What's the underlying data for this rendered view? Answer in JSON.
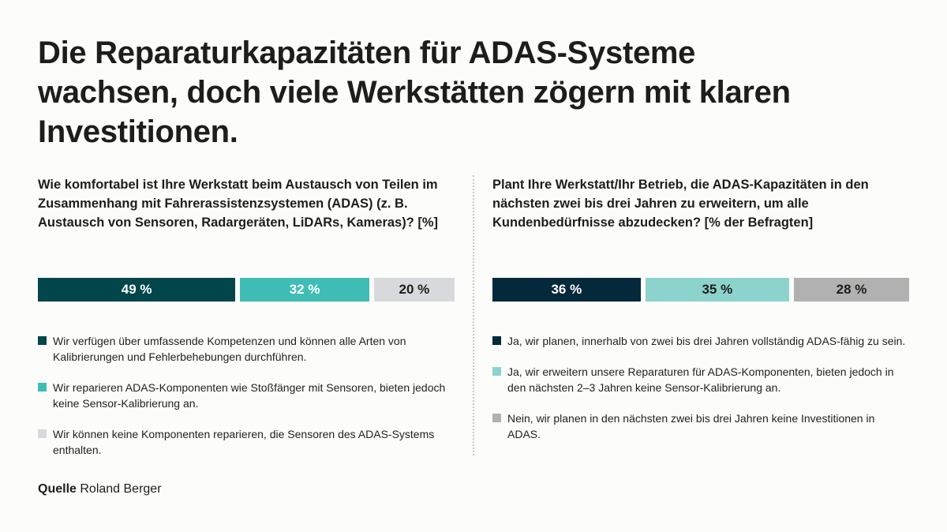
{
  "title": "Die Reparaturkapazitäten für ADAS-Systeme wachsen, doch viele Werkstätten zögern mit klaren Investitionen.",
  "source": {
    "label": "Quelle",
    "value": "Roland Berger"
  },
  "chart_data": [
    {
      "type": "bar",
      "orientation": "horizontal-stacked",
      "title": "Wie komfortabel ist Ihre Werkstatt beim Austausch von Teilen im Zusammenhang mit Fahrerassistenzsystemen (ADAS) (z. B. Austausch von Sensoren, Radargeräten, LiDARs, Kameras)? [%]",
      "values": [
        49,
        32,
        20
      ],
      "labels": [
        "49 %",
        "32 %",
        "20 %"
      ],
      "colors": [
        "#00464b",
        "#3fbdb5",
        "#d8d9dc"
      ],
      "label_colors": [
        "#ffffff",
        "#ffffff",
        "#1d1d1b"
      ],
      "legend": [
        "Wir verfügen über umfassende Kompetenzen und können alle Arten von Kalibrierungen und Fehlerbehebungen durchführen.",
        "Wir reparieren ADAS-Komponenten wie Stoßfänger mit Sensoren, bieten jedoch keine Sensor-Kalibrierung an.",
        "Wir können keine Komponenten reparieren, die Sensoren des ADAS-Systems enthalten."
      ]
    },
    {
      "type": "bar",
      "orientation": "horizontal-stacked",
      "title": "Plant Ihre Werkstatt/Ihr Betrieb, die ADAS-Kapazitäten in den nächsten zwei bis drei Jahren zu erweitern, um alle Kundenbedürfnisse abzudecken? [% der Befragten]",
      "values": [
        36,
        35,
        28
      ],
      "labels": [
        "36 %",
        "35 %",
        "28 %"
      ],
      "colors": [
        "#03293b",
        "#8dd3cd",
        "#b1b1b2"
      ],
      "label_colors": [
        "#ffffff",
        "#1d1d1b",
        "#1d1d1b"
      ],
      "legend": [
        "Ja, wir planen, innerhalb von zwei bis drei Jahren vollständig ADAS-fähig zu sein.",
        "Ja, wir erweitern unsere Reparaturen für ADAS-Komponenten, bieten jedoch in den nächsten 2–3 Jahren keine Sensor-Kalibrierung an.",
        "Nein, wir planen in den nächsten zwei bis drei Jahren keine Investitionen in ADAS."
      ]
    }
  ]
}
